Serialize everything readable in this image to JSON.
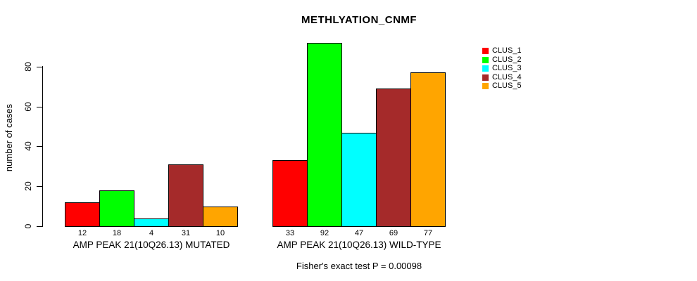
{
  "chart_data": {
    "type": "bar",
    "title": "METHLYATION_CNMF",
    "ylabel": "number of cases",
    "footnote": "Fisher's exact test P = 0.00098",
    "ylim": [
      0,
      80
    ],
    "yticks": [
      0,
      20,
      40,
      60,
      80
    ],
    "grid": false,
    "legend_position": "right",
    "bar_value_labels": true,
    "categories": [
      "AMP PEAK 21(10Q26.13) MUTATED",
      "AMP PEAK 21(10Q26.13) WILD-TYPE"
    ],
    "series": [
      {
        "name": "CLUS_1",
        "color": "#FF0000",
        "values": [
          12,
          33
        ]
      },
      {
        "name": "CLUS_2",
        "color": "#00FF00",
        "values": [
          18,
          92
        ]
      },
      {
        "name": "CLUS_3",
        "color": "#00FFFF",
        "values": [
          4,
          47
        ]
      },
      {
        "name": "CLUS_4",
        "color": "#A52A2A",
        "values": [
          31,
          69
        ]
      },
      {
        "name": "CLUS_5",
        "color": "#FFA500",
        "values": [
          10,
          77
        ]
      }
    ]
  }
}
